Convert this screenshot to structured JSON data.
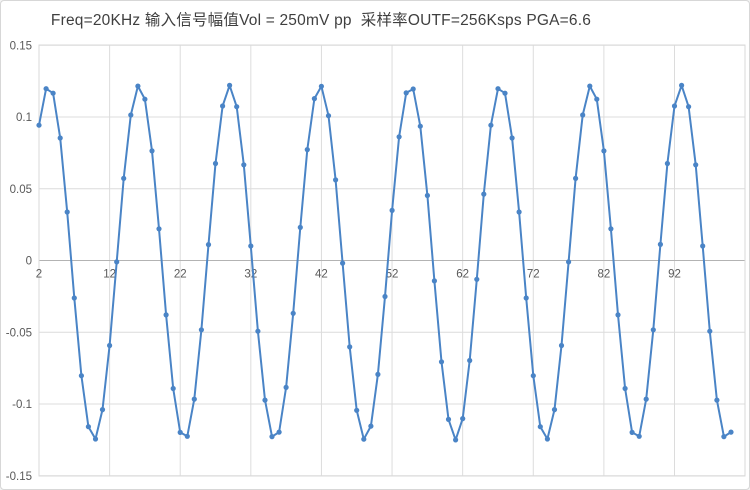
{
  "window": {
    "background": "#ffffff",
    "border_color": "#d7d7d7"
  },
  "colors": {
    "line": "#4a84c6",
    "marker": "#4a84c6",
    "gridline": "#dcdcdc",
    "axis_line": "#b3b3b3",
    "plot_border": "#d9d9d9",
    "tick_text": "#595959",
    "title_text": "#3f3f3f"
  },
  "chart_data": {
    "type": "line",
    "title": "Freq=20KHz 输入信号幅值Vol = 250mV pp  采样率OUTF=256Ksps PGA=6.6",
    "xlabel": "",
    "ylabel": "",
    "legend": "none",
    "grid": true,
    "ylim": [
      -0.15,
      0.15
    ],
    "x_first_category": 2,
    "x_label_interval": 10,
    "x_tick_labels": [
      "2",
      "12",
      "22",
      "32",
      "42",
      "52",
      "62",
      "72",
      "82",
      "92"
    ],
    "y_tick_labels": [
      "0.15",
      "0.1",
      "0.05",
      "0",
      "-0.05",
      "-0.1",
      "-0.15"
    ],
    "y_tick_values": [
      0.15,
      0.1,
      0.05,
      0,
      -0.05,
      -0.1,
      -0.15
    ],
    "series": [
      {
        "marker": "circle",
        "values": [
          0.0943,
          0.1197,
          0.1166,
          0.0854,
          0.0338,
          -0.0261,
          -0.0803,
          -0.1158,
          -0.1244,
          -0.1039,
          -0.0592,
          -0.001,
          0.0572,
          0.1014,
          0.1215,
          0.1124,
          0.0764,
          0.0221,
          -0.0379,
          -0.0892,
          -0.1198,
          -0.1225,
          -0.0966,
          -0.0483,
          0.0111,
          0.0676,
          0.1077,
          0.122,
          0.1072,
          0.0667,
          0.0101,
          -0.0493,
          -0.0973,
          -0.1227,
          -0.1196,
          -0.0884,
          -0.0368,
          0.0231,
          0.0773,
          0.1128,
          0.1214,
          0.1009,
          0.0562,
          -0.0018,
          -0.0602,
          -0.1044,
          -0.1245,
          -0.1154,
          -0.0794,
          -0.0251,
          0.0349,
          0.0862,
          0.1168,
          0.1195,
          0.0936,
          0.0453,
          -0.0142,
          -0.0706,
          -0.1107,
          -0.125,
          -0.1102,
          -0.0697,
          -0.0131,
          0.0463,
          0.0943,
          0.1197,
          0.1166,
          0.0854,
          0.0338,
          -0.0261,
          -0.0803,
          -0.1158,
          -0.1244,
          -0.1039,
          -0.0592,
          -0.001,
          0.0572,
          0.1014,
          0.1215,
          0.1124,
          0.0764,
          0.0221,
          -0.0379,
          -0.0892,
          -0.1198,
          -0.1225,
          -0.0966,
          -0.0483,
          0.0112,
          0.0676,
          0.1077,
          0.122,
          0.1072,
          0.0667,
          0.0101,
          -0.0493,
          -0.0973,
          -0.1227,
          -0.1196
        ]
      }
    ]
  }
}
